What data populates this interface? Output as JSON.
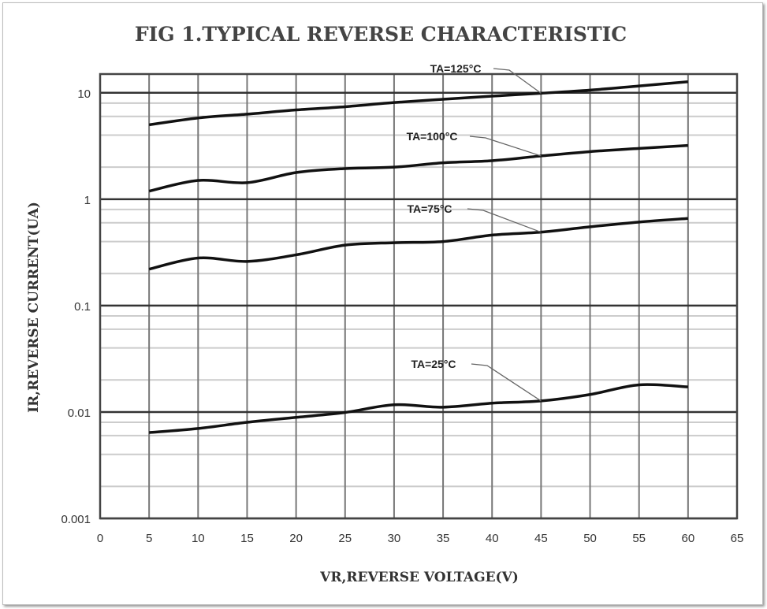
{
  "chart_data": {
    "type": "line",
    "title": "FIG 1.TYPICAL REVERSE CHARACTERISTIC",
    "xlabel": "VR,REVERSE VOLTAGE(V)",
    "ylabel": "IR,REVERSE CURRENT(UA)",
    "xlim": [
      0,
      65
    ],
    "ylim": [
      0.001,
      15
    ],
    "yscale": "log",
    "grid": true,
    "xticks": [
      "0",
      "5",
      "10",
      "15",
      "20",
      "25",
      "30",
      "35",
      "40",
      "45",
      "50",
      "55",
      "60",
      "65"
    ],
    "yticks": [
      "0.001",
      "0.01",
      "0.1",
      "1",
      "10"
    ],
    "x": [
      5,
      10,
      15,
      20,
      25,
      30,
      35,
      40,
      45,
      50,
      55,
      60
    ],
    "series": [
      {
        "name": "TA=125°C",
        "values": [
          5.0,
          5.8,
          6.3,
          6.9,
          7.4,
          8.1,
          8.7,
          9.3,
          9.9,
          10.6,
          11.6,
          12.7
        ]
      },
      {
        "name": "TA=100°C",
        "values": [
          1.19,
          1.5,
          1.43,
          1.78,
          1.94,
          2.0,
          2.2,
          2.3,
          2.55,
          2.8,
          3.0,
          3.2
        ]
      },
      {
        "name": "TA=75°C",
        "values": [
          0.22,
          0.28,
          0.26,
          0.3,
          0.37,
          0.39,
          0.4,
          0.46,
          0.49,
          0.55,
          0.61,
          0.66
        ]
      },
      {
        "name": "TA=25°C",
        "values": [
          0.0064,
          0.007,
          0.008,
          0.0089,
          0.0099,
          0.0117,
          0.0111,
          0.0121,
          0.0127,
          0.0146,
          0.018,
          0.0172
        ]
      }
    ],
    "line_color": "#111111"
  }
}
